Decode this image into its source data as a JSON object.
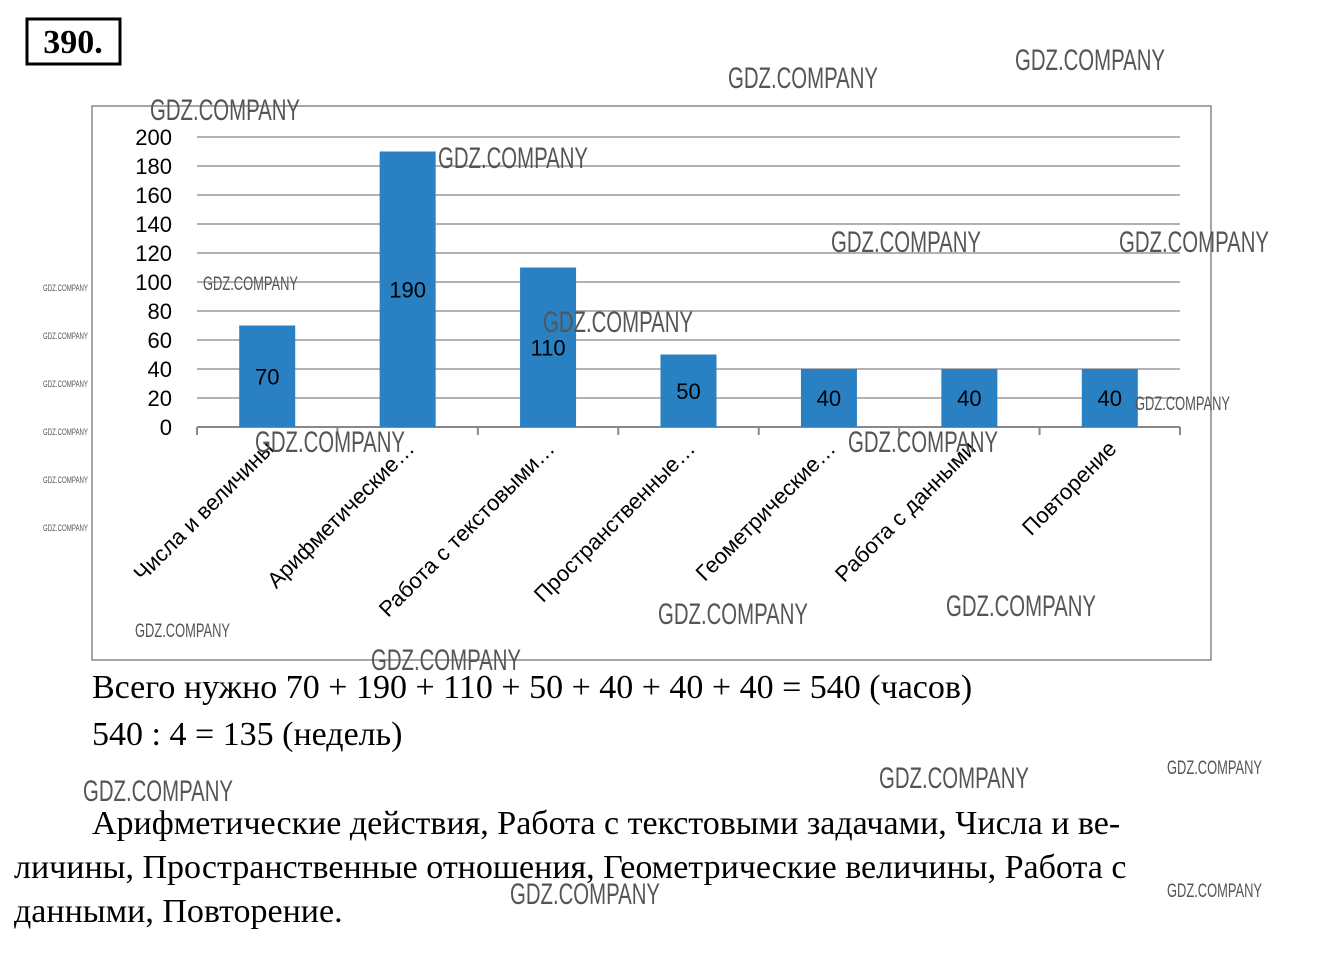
{
  "problem_number": "390.",
  "watermark": "GDZ.COMPANY",
  "chart_data": {
    "type": "bar",
    "categories": [
      "Числа и величины",
      "Арифметические…",
      "Работа с текстовыми…",
      "Пространственные…",
      "Геометрические…",
      "Работа с данными",
      "Повторение"
    ],
    "values": [
      70,
      190,
      110,
      50,
      40,
      40,
      40
    ],
    "color": "#2980c2",
    "ylim": [
      0,
      200
    ],
    "yticks": [
      0,
      20,
      40,
      60,
      80,
      100,
      120,
      140,
      160,
      180,
      200
    ],
    "grid": true
  },
  "solution": {
    "lines": [
      "Всего нужно 70 + 190 + 110 + 50 + 40 + 40 + 40 = 540 (часов)",
      "540 : 4 = 135 (недель)"
    ]
  },
  "answer": {
    "lines": [
      "Арифметические действия, Работа с текстовыми задачами, Числа и ве-",
      "личины, Пространственные отношения, Геометрические величины, Работа с",
      "данными, Повторение."
    ]
  }
}
